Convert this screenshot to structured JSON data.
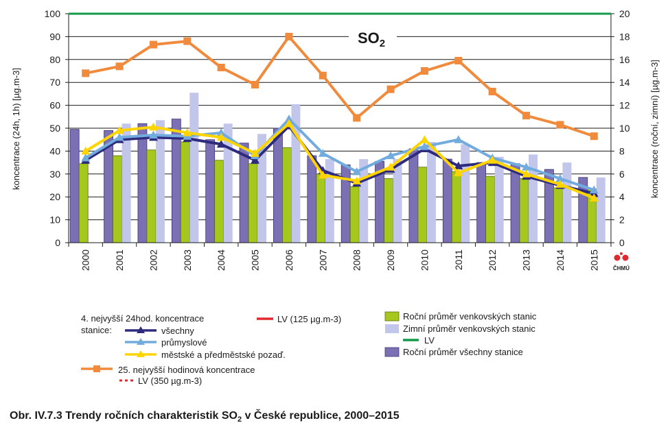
{
  "caption": {
    "prefix": "Obr. IV.7.3  Trendy ročních charakteristik SO",
    "sub": "2",
    "suffix": " v České republice, 2000–2015"
  },
  "logo": {
    "text": "ČHMÚ"
  },
  "chart_data": {
    "type": "bar+line",
    "title": "SO",
    "title_sub": "2",
    "categories": [
      "2000",
      "2001",
      "2002",
      "2003",
      "2004",
      "2005",
      "2006",
      "2007",
      "2008",
      "2009",
      "2010",
      "2011",
      "2012",
      "2013",
      "2014",
      "2015"
    ],
    "left_axis": {
      "label": "koncentrace (24h, 1h) [µg.m-3]",
      "ticks": [
        "0",
        "10",
        "20",
        "30",
        "40",
        "50",
        "60",
        "70",
        "80",
        "90",
        "100"
      ],
      "range": [
        0,
        100
      ]
    },
    "right_axis": {
      "label": "koncentrace (roční, zimní) [µg.m-3]",
      "ticks": [
        "0",
        "2",
        "4",
        "6",
        "8",
        "10",
        "12",
        "14",
        "16",
        "18",
        "20"
      ],
      "range": [
        0,
        20
      ]
    },
    "bar_series": [
      {
        "key": "all_annual",
        "color": "#7b70b4",
        "axis": "right",
        "values": [
          9.9,
          9.8,
          10.4,
          10.8,
          9.0,
          8.7,
          10.0,
          7.6,
          6.8,
          7.1,
          8.2,
          7.3,
          7.0,
          6.9,
          6.4,
          5.7
        ]
      },
      {
        "key": "rural_annual",
        "color": "#a6c81e",
        "axis": "right",
        "values": [
          6.9,
          7.6,
          8.1,
          8.8,
          7.2,
          6.9,
          8.3,
          6.0,
          4.9,
          5.6,
          6.6,
          6.2,
          5.8,
          5.6,
          4.8,
          4.7
        ]
      },
      {
        "key": "rural_winter",
        "color": "#c2c6ea",
        "axis": "right",
        "values": [
          null,
          10.4,
          10.7,
          13.1,
          10.4,
          9.5,
          12.1,
          7.3,
          7.3,
          7.3,
          8.8,
          8.6,
          7.5,
          7.7,
          7.0,
          5.7
        ]
      }
    ],
    "line_series": [
      {
        "key": "h24_all",
        "color": "#2e2a7d",
        "marker": "triangle",
        "axis": "left",
        "values": [
          36,
          45,
          46,
          45.5,
          43,
          36,
          51,
          31.5,
          26,
          32,
          41,
          33.5,
          35,
          29,
          25,
          21.5
        ]
      },
      {
        "key": "h24_ind",
        "color": "#72acde",
        "marker": "triangle",
        "axis": "left",
        "values": [
          37,
          46,
          47,
          46.5,
          48,
          38,
          54,
          39,
          31,
          38,
          42,
          45,
          37,
          33,
          28,
          23
        ]
      },
      {
        "key": "h24_urban",
        "color": "#ffd400",
        "marker": "triangle",
        "axis": "left",
        "values": [
          40,
          49,
          50.5,
          48,
          46,
          39,
          52,
          29.5,
          27,
          33,
          45,
          30.5,
          36,
          30,
          25.5,
          19.5
        ]
      },
      {
        "key": "h1_25th",
        "color": "#f08a3c",
        "marker": "square",
        "axis": "left",
        "values": [
          74,
          77,
          86.5,
          88,
          76.5,
          69,
          90,
          73,
          54.5,
          67,
          75,
          79.5,
          66,
          55.5,
          51.5,
          46.5
        ]
      }
    ],
    "lv_line": {
      "value": 20,
      "axis": "right",
      "color": "#129a48"
    },
    "legend": {
      "group1_line1": "4. nejvyšší 24hod. koncentrace",
      "group1_line2": "stanice:",
      "h24_all": "všechny",
      "h24_ind": "průmyslové",
      "h24_urban": "městské a předměstské pozaď.",
      "h1_25th": "25. nejvyšší hodinová koncentrace",
      "lv_1h": "LV (350 µg.m-3)",
      "lv_24h": "LV (125 µg.m-3)",
      "rural_annual": "Roční průměr venkovských stanic",
      "rural_winter": "Zimní průměr venkovských stanic",
      "lv_annual": "LV",
      "all_annual": "Roční průměr všechny stanice",
      "lv_24h_color": "#e0282d",
      "lv_1h_color": "#e0282d"
    }
  }
}
